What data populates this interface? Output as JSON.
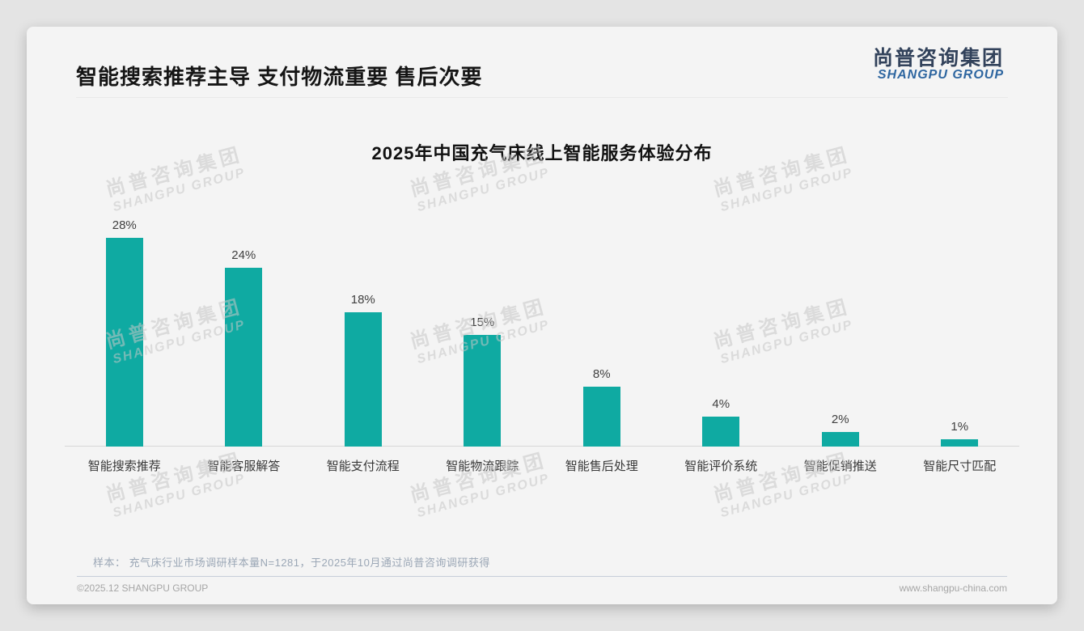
{
  "page": {
    "title": "智能搜索推荐主导 支付物流重要 售后次要",
    "logo": {
      "cn": "尚普咨询集团",
      "en": "SHANGPU GROUP"
    },
    "watermark": {
      "cn": "尚普咨询集团",
      "en": "SHANGPU GROUP"
    },
    "footnote": "样本： 充气床行业市场调研样本量N=1281，于2025年10月通过尚普咨询调研获得",
    "footer_left": "©2025.12 SHANGPU GROUP",
    "footer_right": "www.shangpu-china.com"
  },
  "colors": {
    "bar": "#0faaa2",
    "logo_cn": "#32425b",
    "logo_en": "#2e66a0",
    "footnote_text": "#9ba7b6"
  },
  "chart_data": {
    "type": "bar",
    "title": "2025年中国充气床线上智能服务体验分布",
    "categories": [
      "智能搜索推荐",
      "智能客服解答",
      "智能支付流程",
      "智能物流跟踪",
      "智能售后处理",
      "智能评价系统",
      "智能促销推送",
      "智能尺寸匹配"
    ],
    "values": [
      28,
      24,
      18,
      15,
      8,
      4,
      2,
      1
    ],
    "unit": "%",
    "value_label_format": "{v}%",
    "xlabel": "",
    "ylabel": "",
    "ylim": [
      0,
      30
    ],
    "grid": false,
    "legend": "none",
    "bar_color": "#0faaa2"
  }
}
